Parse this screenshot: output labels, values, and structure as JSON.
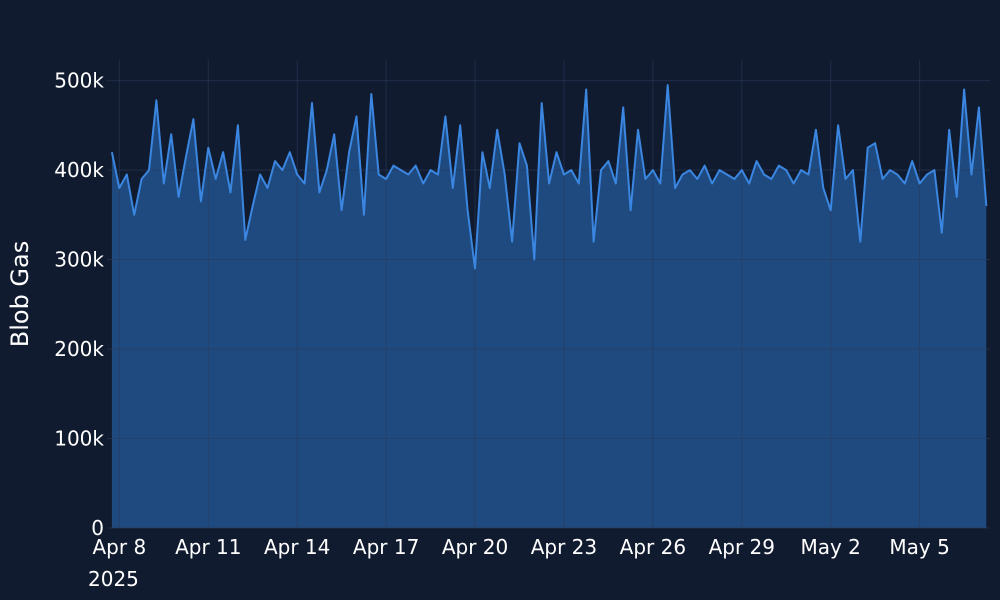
{
  "chart_data": {
    "type": "area",
    "y_label": "Blob Gas",
    "x_year_label": "2025",
    "color": "#3a86e0",
    "fill_color": "#1f4a80",
    "grid": true,
    "xlim": [
      "2025-04-07T14:00",
      "2025-05-07T09:00"
    ],
    "ylim": [
      0,
      523000
    ],
    "yticks": [
      0,
      {
        "value": 100000,
        "label": "100k"
      },
      {
        "value": 200000,
        "label": "200k"
      },
      {
        "value": 300000,
        "label": "300k"
      },
      {
        "value": 400000,
        "label": "400k"
      },
      {
        "value": 500000,
        "label": "500k"
      }
    ],
    "xticks": [
      {
        "value": "2025-04-08T00:00",
        "label": "Apr 8"
      },
      {
        "value": "2025-04-11T00:00",
        "label": "Apr 11"
      },
      {
        "value": "2025-04-14T00:00",
        "label": "Apr 14"
      },
      {
        "value": "2025-04-17T00:00",
        "label": "Apr 17"
      },
      {
        "value": "2025-04-20T00:00",
        "label": "Apr 20"
      },
      {
        "value": "2025-04-23T00:00",
        "label": "Apr 23"
      },
      {
        "value": "2025-04-26T00:00",
        "label": "Apr 26"
      },
      {
        "value": "2025-04-29T00:00",
        "label": "Apr 29"
      },
      {
        "value": "2025-05-02T00:00",
        "label": "May 2"
      },
      {
        "value": "2025-05-05T00:00",
        "label": "May 5"
      }
    ],
    "x": [
      "2025-04-07T18:00",
      "2025-04-08T00:00",
      "2025-04-08T06:00",
      "2025-04-08T12:00",
      "2025-04-08T18:00",
      "2025-04-09T00:00",
      "2025-04-09T06:00",
      "2025-04-09T12:00",
      "2025-04-09T18:00",
      "2025-04-10T00:00",
      "2025-04-10T06:00",
      "2025-04-10T12:00",
      "2025-04-10T18:00",
      "2025-04-11T00:00",
      "2025-04-11T06:00",
      "2025-04-11T12:00",
      "2025-04-11T18:00",
      "2025-04-12T00:00",
      "2025-04-12T06:00",
      "2025-04-12T12:00",
      "2025-04-12T18:00",
      "2025-04-13T00:00",
      "2025-04-13T06:00",
      "2025-04-13T12:00",
      "2025-04-13T18:00",
      "2025-04-14T00:00",
      "2025-04-14T06:00",
      "2025-04-14T12:00",
      "2025-04-14T18:00",
      "2025-04-15T00:00",
      "2025-04-15T06:00",
      "2025-04-15T12:00",
      "2025-04-15T18:00",
      "2025-04-16T00:00",
      "2025-04-16T06:00",
      "2025-04-16T12:00",
      "2025-04-16T18:00",
      "2025-04-17T00:00",
      "2025-04-17T06:00",
      "2025-04-17T12:00",
      "2025-04-17T18:00",
      "2025-04-18T00:00",
      "2025-04-18T06:00",
      "2025-04-18T12:00",
      "2025-04-18T18:00",
      "2025-04-19T00:00",
      "2025-04-19T06:00",
      "2025-04-19T12:00",
      "2025-04-19T18:00",
      "2025-04-20T00:00",
      "2025-04-20T06:00",
      "2025-04-20T12:00",
      "2025-04-20T18:00",
      "2025-04-21T00:00",
      "2025-04-21T06:00",
      "2025-04-21T12:00",
      "2025-04-21T18:00",
      "2025-04-22T00:00",
      "2025-04-22T06:00",
      "2025-04-22T12:00",
      "2025-04-22T18:00",
      "2025-04-23T00:00",
      "2025-04-23T06:00",
      "2025-04-23T12:00",
      "2025-04-23T18:00",
      "2025-04-24T00:00",
      "2025-04-24T06:00",
      "2025-04-24T12:00",
      "2025-04-24T18:00",
      "2025-04-25T00:00",
      "2025-04-25T06:00",
      "2025-04-25T12:00",
      "2025-04-25T18:00",
      "2025-04-26T00:00",
      "2025-04-26T06:00",
      "2025-04-26T12:00",
      "2025-04-26T18:00",
      "2025-04-27T00:00",
      "2025-04-27T06:00",
      "2025-04-27T12:00",
      "2025-04-27T18:00",
      "2025-04-28T00:00",
      "2025-04-28T06:00",
      "2025-04-28T12:00",
      "2025-04-28T18:00",
      "2025-04-29T00:00",
      "2025-04-29T06:00",
      "2025-04-29T12:00",
      "2025-04-29T18:00",
      "2025-04-30T00:00",
      "2025-04-30T06:00",
      "2025-04-30T12:00",
      "2025-04-30T18:00",
      "2025-05-01T00:00",
      "2025-05-01T06:00",
      "2025-05-01T12:00",
      "2025-05-01T18:00",
      "2025-05-02T00:00",
      "2025-05-02T06:00",
      "2025-05-02T12:00",
      "2025-05-02T18:00",
      "2025-05-03T00:00",
      "2025-05-03T06:00",
      "2025-05-03T12:00",
      "2025-05-03T18:00",
      "2025-05-04T00:00",
      "2025-05-04T06:00",
      "2025-05-04T12:00",
      "2025-05-04T18:00",
      "2025-05-05T00:00",
      "2025-05-05T06:00",
      "2025-05-05T12:00",
      "2025-05-05T18:00",
      "2025-05-06T00:00",
      "2025-05-06T06:00",
      "2025-05-06T12:00",
      "2025-05-06T18:00",
      "2025-05-07T00:00",
      "2025-05-07T06:00"
    ],
    "values": [
      420000,
      380000,
      395000,
      350000,
      390000,
      400000,
      478000,
      385000,
      440000,
      370000,
      415000,
      457000,
      365000,
      425000,
      390000,
      420000,
      375000,
      450000,
      322000,
      360000,
      395000,
      380000,
      410000,
      400000,
      420000,
      395000,
      385000,
      475000,
      375000,
      400000,
      440000,
      355000,
      420000,
      460000,
      350000,
      485000,
      395000,
      390000,
      405000,
      400000,
      395000,
      405000,
      385000,
      400000,
      395000,
      460000,
      380000,
      450000,
      355000,
      290000,
      420000,
      380000,
      445000,
      395000,
      320000,
      430000,
      405000,
      300000,
      475000,
      385000,
      420000,
      395000,
      400000,
      385000,
      490000,
      320000,
      400000,
      410000,
      385000,
      470000,
      355000,
      445000,
      390000,
      400000,
      385000,
      495000,
      380000,
      395000,
      400000,
      390000,
      405000,
      385000,
      400000,
      395000,
      390000,
      400000,
      385000,
      410000,
      395000,
      390000,
      405000,
      400000,
      385000,
      400000,
      395000,
      445000,
      380000,
      355000,
      450000,
      390000,
      400000,
      320000,
      425000,
      430000,
      390000,
      400000,
      395000,
      385000,
      410000,
      385000,
      395000,
      400000,
      330000,
      445000,
      370000,
      490000,
      395000,
      470000,
      360000
    ]
  }
}
